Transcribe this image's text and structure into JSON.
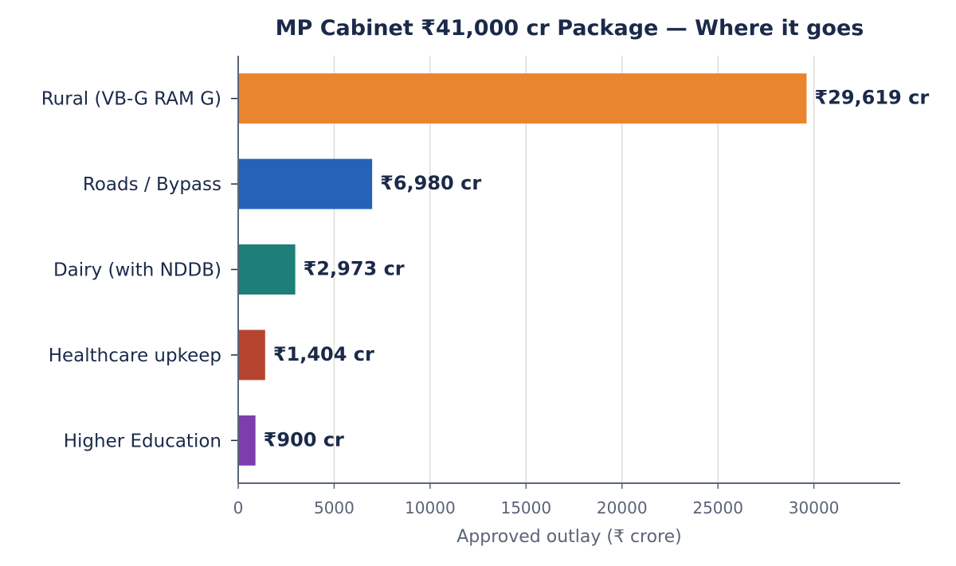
{
  "chart_data": {
    "type": "bar",
    "orientation": "horizontal",
    "title": "MP Cabinet ₹41,000 cr Package — Where it goes",
    "xlabel": "Approved outlay (₹ crore)",
    "ylabel": "",
    "categories": [
      "Rural (VB-G RAM G)",
      "Roads / Bypass",
      "Dairy (with NDDB)",
      "Healthcare upkeep",
      "Higher Education"
    ],
    "values": [
      29619,
      6980,
      2973,
      1404,
      900
    ],
    "data_labels": [
      "₹29,619 cr",
      "₹6,980 cr",
      "₹2,973 cr",
      "₹1,404 cr",
      "₹900 cr"
    ],
    "colors": [
      "#e8852e",
      "#2563b8",
      "#1e7f78",
      "#b5442f",
      "#7e3dad"
    ],
    "xlim": [
      0,
      34500
    ],
    "xticks": [
      0,
      5000,
      10000,
      15000,
      20000,
      25000,
      30000
    ],
    "grid": "vertical",
    "legend": "none"
  }
}
